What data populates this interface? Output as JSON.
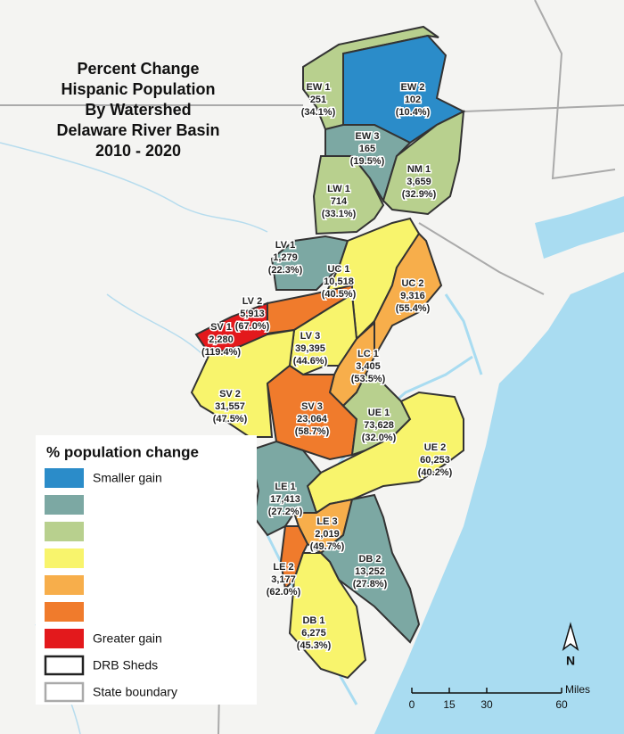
{
  "title": [
    "Percent Change",
    "Hispanic Population",
    "By Watershed",
    "Delaware River Basin",
    "2010 - 2020"
  ],
  "regions": [
    {
      "name": "EW 1",
      "count": "251",
      "percent": "(34.1%)",
      "color": "#b8d08e"
    },
    {
      "name": "EW 2",
      "count": "102",
      "percent": "(10.4%)",
      "color": "#2b8cc9"
    },
    {
      "name": "EW 3",
      "count": "165",
      "percent": "(19.5%)",
      "color": "#7ca8a3"
    },
    {
      "name": "NM 1",
      "count": "3,659",
      "percent": "(32.9%)",
      "color": "#b8d08e"
    },
    {
      "name": "LW 1",
      "count": "714",
      "percent": "(33.1%)",
      "color": "#b8d08e"
    },
    {
      "name": "LV 1",
      "count": "1,279",
      "percent": "(22.3%)",
      "color": "#7ca8a3"
    },
    {
      "name": "UC 1",
      "count": "10,518",
      "percent": "(40.5%)",
      "color": "#f8f46c"
    },
    {
      "name": "UC 2",
      "count": "9,316",
      "percent": "(55.4%)",
      "color": "#f7ae4b"
    },
    {
      "name": "LV 2",
      "count": "5,913",
      "percent": "(67.0%)",
      "color": "#f07b2c"
    },
    {
      "name": "SV 1",
      "count": "2,280",
      "percent": "(119.4%)",
      "color": "#e3191c"
    },
    {
      "name": "LV 3",
      "count": "39,395",
      "percent": "(44.6%)",
      "color": "#f8f46c"
    },
    {
      "name": "LC 1",
      "count": "3,405",
      "percent": "(53.5%)",
      "color": "#f7ae4b"
    },
    {
      "name": "SV 2",
      "count": "31,557",
      "percent": "(47.5%)",
      "color": "#f8f46c"
    },
    {
      "name": "SV 3",
      "count": "23,064",
      "percent": "(58.7%)",
      "color": "#f07b2c"
    },
    {
      "name": "UE 1",
      "count": "73,628",
      "percent": "(32.0%)",
      "color": "#b8d08e"
    },
    {
      "name": "UE 2",
      "count": "60,253",
      "percent": "(40.2%)",
      "color": "#f8f46c"
    },
    {
      "name": "LE 1",
      "count": "17,413",
      "percent": "(27.2%)",
      "color": "#7ca8a3"
    },
    {
      "name": "LE 3",
      "count": "2,019",
      "percent": "(49.7%)",
      "color": "#f7ae4b"
    },
    {
      "name": "DB 2",
      "count": "13,252",
      "percent": "(27.8%)",
      "color": "#7ca8a3"
    },
    {
      "name": "LE 2",
      "count": "3,177",
      "percent": "(62.0%)",
      "color": "#f07b2c"
    },
    {
      "name": "DB 1",
      "count": "6,275",
      "percent": "(45.3%)",
      "color": "#f8f46c"
    }
  ],
  "legend": {
    "title": "% population change",
    "items": [
      {
        "label": "Smaller gain",
        "color": "#2b8cc9"
      },
      {
        "color": "#7ca8a3"
      },
      {
        "color": "#b8d08e"
      },
      {
        "color": "#f8f46c"
      },
      {
        "color": "#f7ae4b"
      },
      {
        "color": "#f07b2c"
      },
      {
        "label": "Greater gain",
        "color": "#e3191c"
      }
    ],
    "outlines": [
      {
        "label": "DRB Sheds",
        "color": "#222222"
      },
      {
        "label": "State boundary",
        "color": "#aaaaaa"
      }
    ]
  },
  "scale_bar": {
    "ticks": [
      0,
      15,
      30,
      60
    ],
    "unit": "Miles"
  },
  "north_arrow": "N"
}
